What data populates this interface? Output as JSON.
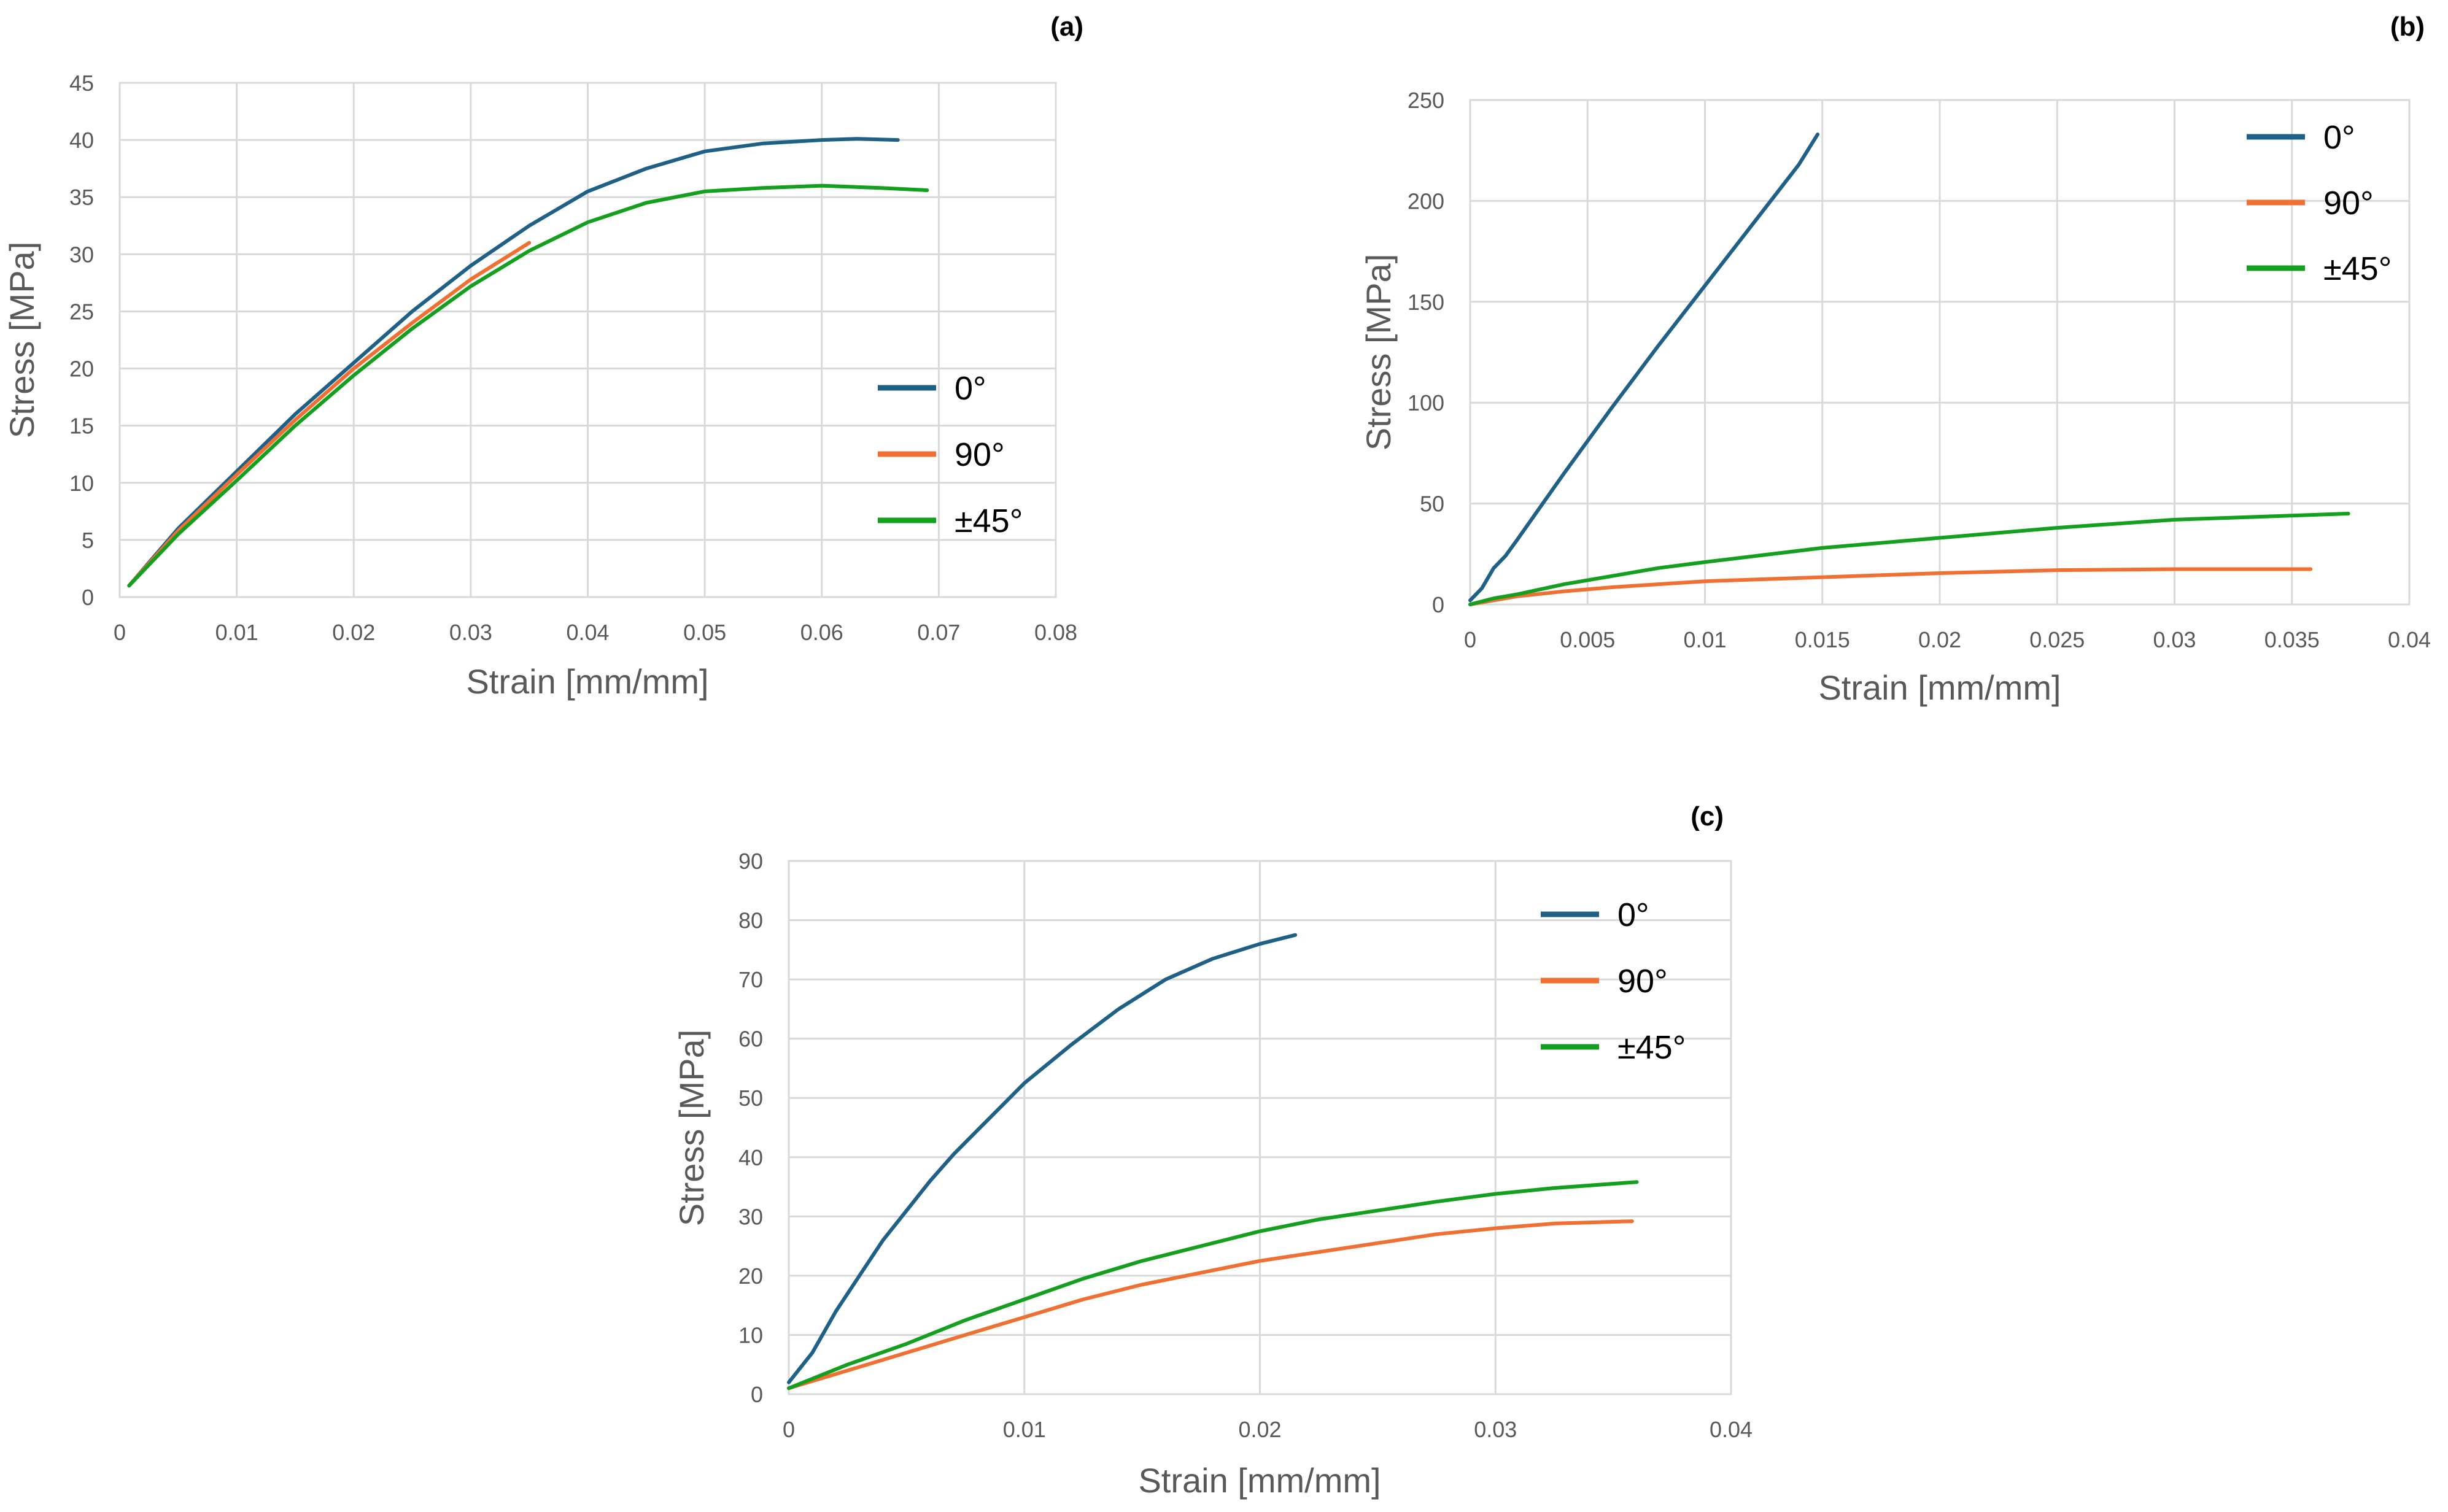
{
  "chart_data": [
    {
      "panel": "(a)",
      "type": "line",
      "xlabel": "Strain [mm/mm]",
      "ylabel": "Stress [MPa]",
      "xlim": [
        0,
        0.08
      ],
      "ylim": [
        0,
        45
      ],
      "xticks": [
        0,
        0.01,
        0.02,
        0.03,
        0.04,
        0.05,
        0.06,
        0.07,
        0.08
      ],
      "yticks": [
        0,
        5,
        10,
        15,
        20,
        25,
        30,
        35,
        40,
        45
      ],
      "grid": true,
      "legend_position": "right",
      "series": [
        {
          "name": "0°",
          "color": "#1f6186",
          "x": [
            0.0008,
            0.005,
            0.01,
            0.015,
            0.02,
            0.025,
            0.03,
            0.035,
            0.04,
            0.045,
            0.05,
            0.055,
            0.06,
            0.063,
            0.0665
          ],
          "y": [
            1.0,
            6.0,
            11.0,
            16.0,
            20.5,
            25.0,
            29.0,
            32.5,
            35.5,
            37.5,
            39.0,
            39.7,
            40.0,
            40.1,
            40.0
          ]
        },
        {
          "name": "90°",
          "color": "#f07033",
          "x": [
            0.0008,
            0.005,
            0.01,
            0.015,
            0.02,
            0.025,
            0.03,
            0.035
          ],
          "y": [
            1.0,
            5.8,
            10.7,
            15.5,
            20.0,
            24.0,
            27.8,
            31.0
          ]
        },
        {
          "name": "±45°",
          "color": "#14a01e",
          "x": [
            0.0008,
            0.005,
            0.01,
            0.015,
            0.02,
            0.025,
            0.03,
            0.035,
            0.04,
            0.045,
            0.05,
            0.055,
            0.06,
            0.065,
            0.069
          ],
          "y": [
            1.0,
            5.5,
            10.2,
            15.0,
            19.4,
            23.5,
            27.2,
            30.3,
            32.8,
            34.5,
            35.5,
            35.8,
            36.0,
            35.8,
            35.6
          ]
        }
      ]
    },
    {
      "panel": "(b)",
      "type": "line",
      "xlabel": "Strain [mm/mm]",
      "ylabel": "Stress [MPa]",
      "xlim": [
        0,
        0.04
      ],
      "ylim": [
        0,
        250
      ],
      "xticks": [
        0,
        0.005,
        0.01,
        0.015,
        0.02,
        0.025,
        0.03,
        0.035,
        0.04
      ],
      "yticks": [
        0,
        50,
        100,
        150,
        200,
        250
      ],
      "grid": true,
      "legend_position": "top-right",
      "series": [
        {
          "name": "0°",
          "color": "#1f6186",
          "x": [
            0,
            0.0005,
            0.001,
            0.0015,
            0.002,
            0.004,
            0.006,
            0.008,
            0.01,
            0.012,
            0.014,
            0.0148
          ],
          "y": [
            2,
            8,
            18,
            24,
            32,
            65,
            97,
            128,
            158,
            188,
            218,
            233
          ]
        },
        {
          "name": "90°",
          "color": "#f07033",
          "x": [
            0,
            0.001,
            0.002,
            0.004,
            0.006,
            0.008,
            0.01,
            0.015,
            0.02,
            0.025,
            0.03,
            0.0358
          ],
          "y": [
            0,
            2,
            4,
            6.5,
            8.5,
            10,
            11.5,
            13.5,
            15.5,
            17,
            17.5,
            17.5
          ]
        },
        {
          "name": "±45°",
          "color": "#14a01e",
          "x": [
            0,
            0.001,
            0.002,
            0.004,
            0.006,
            0.008,
            0.01,
            0.015,
            0.02,
            0.025,
            0.03,
            0.0374
          ],
          "y": [
            0,
            3,
            5,
            10,
            14,
            18,
            21,
            28,
            33,
            38,
            42,
            45
          ]
        }
      ]
    },
    {
      "panel": "(c)",
      "type": "line",
      "xlabel": "Strain [mm/mm]",
      "ylabel": "Stress [MPa]",
      "xlim": [
        0,
        0.04
      ],
      "ylim": [
        0,
        90
      ],
      "xticks": [
        0,
        0.01,
        0.02,
        0.03,
        0.04
      ],
      "yticks": [
        0,
        10,
        20,
        30,
        40,
        50,
        60,
        70,
        80,
        90
      ],
      "grid": true,
      "legend_position": "top-right",
      "series": [
        {
          "name": "0°",
          "color": "#1f6186",
          "x": [
            0,
            0.001,
            0.002,
            0.003,
            0.004,
            0.005,
            0.006,
            0.007,
            0.008,
            0.009,
            0.01,
            0.012,
            0.014,
            0.016,
            0.018,
            0.02,
            0.0215
          ],
          "y": [
            2,
            7,
            14,
            20,
            26,
            31,
            36,
            40.5,
            44.5,
            48.5,
            52.5,
            59,
            65,
            70,
            73.5,
            76,
            77.5
          ]
        },
        {
          "name": "90°",
          "color": "#f07033",
          "x": [
            0,
            0.0025,
            0.005,
            0.0075,
            0.01,
            0.0125,
            0.015,
            0.0175,
            0.02,
            0.0225,
            0.025,
            0.0275,
            0.03,
            0.0325,
            0.0358
          ],
          "y": [
            1,
            4,
            7,
            10,
            13,
            16,
            18.5,
            20.5,
            22.5,
            24,
            25.5,
            27,
            28,
            28.8,
            29.2
          ]
        },
        {
          "name": "±45°",
          "color": "#14a01e",
          "x": [
            0,
            0.0025,
            0.005,
            0.0075,
            0.01,
            0.0125,
            0.015,
            0.0175,
            0.02,
            0.0225,
            0.025,
            0.0275,
            0.03,
            0.0325,
            0.036
          ],
          "y": [
            1,
            5,
            8.5,
            12.5,
            16,
            19.5,
            22.5,
            25,
            27.5,
            29.5,
            31,
            32.5,
            33.8,
            34.8,
            35.8
          ]
        }
      ]
    }
  ]
}
